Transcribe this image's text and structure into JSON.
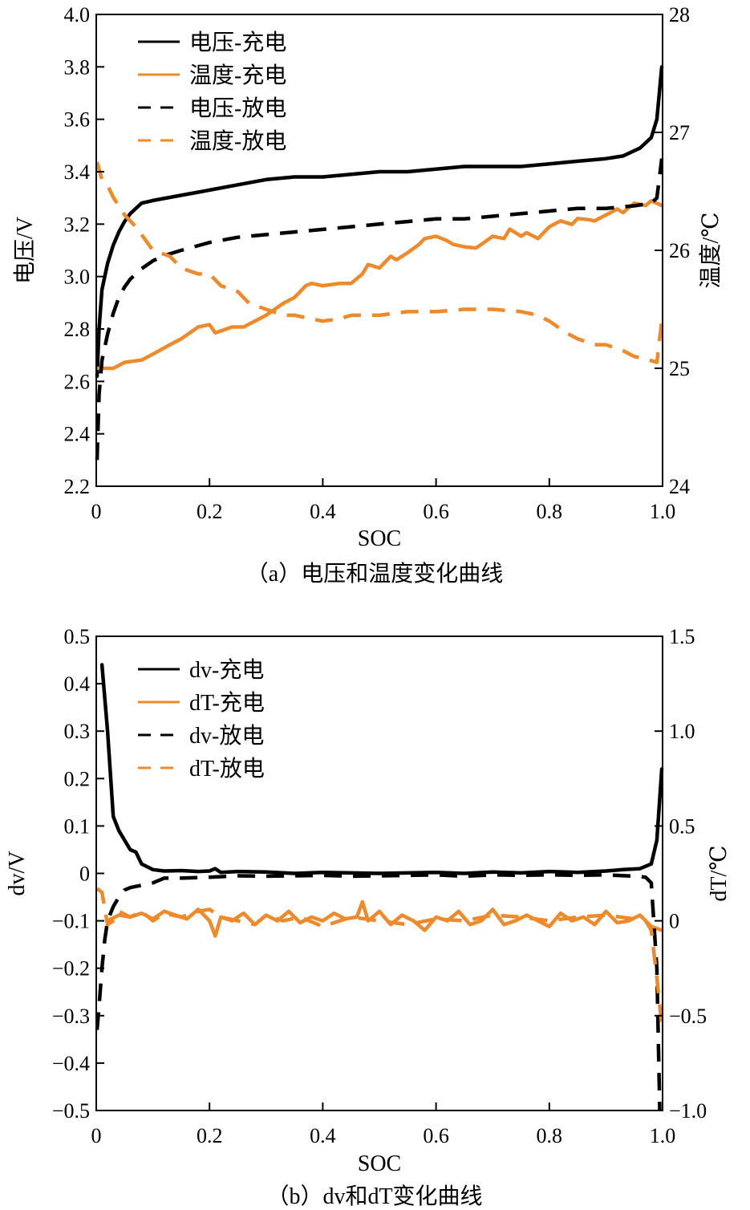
{
  "colors": {
    "voltage": "#000000",
    "temperature": "#ef8a2a"
  },
  "charts": [
    {
      "type": "line",
      "caption": "（a）电压和温度变化曲线",
      "xlabel": "SOC",
      "ylabel_left": "电压/V",
      "ylabel_right": "温度/℃",
      "xlim": [
        0,
        1.0
      ],
      "ylim_left": [
        2.2,
        4.0
      ],
      "ylim_right": [
        24,
        28
      ],
      "xticks": [
        "0",
        "0.2",
        "0.4",
        "0.6",
        "0.8",
        "1.0"
      ],
      "yticks_left": [
        "2.2",
        "2.4",
        "2.6",
        "2.8",
        "3.0",
        "3.2",
        "3.4",
        "3.6",
        "3.8",
        "4.0"
      ],
      "yticks_right": [
        "24",
        "25",
        "26",
        "27",
        "28"
      ],
      "legend_position": "top-left",
      "series": [
        {
          "name": "电压-充电",
          "axis": "left",
          "color": "#000000",
          "dash": "solid",
          "x": [
            0,
            0.005,
            0.01,
            0.02,
            0.03,
            0.04,
            0.05,
            0.06,
            0.07,
            0.08,
            0.1,
            0.15,
            0.2,
            0.25,
            0.3,
            0.35,
            0.4,
            0.45,
            0.5,
            0.55,
            0.6,
            0.65,
            0.7,
            0.75,
            0.8,
            0.85,
            0.9,
            0.93,
            0.96,
            0.98,
            0.99,
            1.0
          ],
          "y": [
            2.62,
            2.8,
            2.95,
            3.05,
            3.12,
            3.17,
            3.21,
            3.24,
            3.26,
            3.28,
            3.29,
            3.31,
            3.33,
            3.35,
            3.37,
            3.38,
            3.38,
            3.39,
            3.4,
            3.4,
            3.41,
            3.42,
            3.42,
            3.42,
            3.43,
            3.44,
            3.45,
            3.46,
            3.49,
            3.53,
            3.6,
            3.8
          ]
        },
        {
          "name": "温度-充电",
          "axis": "right",
          "color": "#ef8a2a",
          "dash": "solid",
          "x": [
            0,
            0.01,
            0.03,
            0.05,
            0.08,
            0.1,
            0.13,
            0.15,
            0.18,
            0.2,
            0.21,
            0.24,
            0.26,
            0.28,
            0.3,
            0.33,
            0.35,
            0.37,
            0.38,
            0.4,
            0.43,
            0.45,
            0.47,
            0.48,
            0.5,
            0.52,
            0.53,
            0.55,
            0.57,
            0.58,
            0.6,
            0.62,
            0.63,
            0.65,
            0.67,
            0.68,
            0.7,
            0.72,
            0.73,
            0.75,
            0.76,
            0.78,
            0.8,
            0.82,
            0.84,
            0.85,
            0.87,
            0.88,
            0.9,
            0.92,
            0.93,
            0.95,
            0.97,
            0.98,
            1.0
          ],
          "y": [
            25.0,
            25.0,
            25.0,
            25.05,
            25.07,
            25.12,
            25.2,
            25.25,
            25.35,
            25.37,
            25.3,
            25.35,
            25.35,
            25.4,
            25.45,
            25.55,
            25.6,
            25.7,
            25.72,
            25.7,
            25.72,
            25.72,
            25.8,
            25.88,
            25.85,
            25.95,
            25.92,
            25.98,
            26.05,
            26.1,
            26.12,
            26.08,
            26.05,
            26.03,
            26.02,
            26.05,
            26.12,
            26.1,
            26.18,
            26.12,
            26.15,
            26.1,
            26.2,
            26.25,
            26.22,
            26.27,
            26.26,
            26.25,
            26.3,
            26.35,
            26.32,
            26.4,
            26.38,
            26.42,
            26.38
          ]
        },
        {
          "name": "电压-放电",
          "axis": "left",
          "color": "#000000",
          "dash": "dash",
          "x": [
            0,
            0.005,
            0.01,
            0.02,
            0.03,
            0.04,
            0.05,
            0.06,
            0.07,
            0.08,
            0.1,
            0.12,
            0.15,
            0.2,
            0.25,
            0.3,
            0.35,
            0.4,
            0.45,
            0.5,
            0.55,
            0.6,
            0.65,
            0.7,
            0.75,
            0.8,
            0.85,
            0.9,
            0.95,
            0.98,
            0.99,
            1.0
          ],
          "y": [
            2.3,
            2.55,
            2.68,
            2.78,
            2.86,
            2.92,
            2.96,
            2.99,
            3.01,
            3.03,
            3.06,
            3.08,
            3.1,
            3.13,
            3.15,
            3.16,
            3.17,
            3.18,
            3.19,
            3.2,
            3.21,
            3.22,
            3.22,
            3.23,
            3.24,
            3.25,
            3.26,
            3.26,
            3.27,
            3.28,
            3.3,
            3.45
          ]
        },
        {
          "name": "温度-放电",
          "axis": "right",
          "color": "#ef8a2a",
          "dash": "dash",
          "x": [
            0,
            0.01,
            0.02,
            0.03,
            0.05,
            0.07,
            0.1,
            0.13,
            0.15,
            0.18,
            0.2,
            0.22,
            0.25,
            0.27,
            0.3,
            0.33,
            0.35,
            0.38,
            0.4,
            0.43,
            0.45,
            0.5,
            0.55,
            0.6,
            0.65,
            0.7,
            0.75,
            0.78,
            0.8,
            0.83,
            0.85,
            0.88,
            0.9,
            0.93,
            0.95,
            0.97,
            0.99,
            1.0
          ],
          "y": [
            26.75,
            26.6,
            26.55,
            26.45,
            26.3,
            26.2,
            26.0,
            25.95,
            25.85,
            25.8,
            25.8,
            25.7,
            25.65,
            25.55,
            25.5,
            25.45,
            25.45,
            25.42,
            25.4,
            25.42,
            25.45,
            25.45,
            25.48,
            25.48,
            25.5,
            25.5,
            25.48,
            25.45,
            25.4,
            25.3,
            25.25,
            25.2,
            25.2,
            25.15,
            25.1,
            25.08,
            25.05,
            25.4
          ]
        }
      ]
    },
    {
      "type": "line",
      "caption": "（b）dv和dT变化曲线",
      "xlabel": "SOC",
      "ylabel_left": "dv/V",
      "ylabel_right": "dT/℃",
      "xlim": [
        0,
        1.0
      ],
      "ylim_left": [
        -0.5,
        0.5
      ],
      "ylim_right": [
        -1.0,
        1.5
      ],
      "xticks": [
        "0",
        "0.2",
        "0.4",
        "0.6",
        "0.8",
        "1.0"
      ],
      "yticks_left": [
        "−0.5",
        "−0.4",
        "−0.3",
        "−0.2",
        "−0.1",
        "0",
        "0.1",
        "0.2",
        "0.3",
        "0.4",
        "0.5"
      ],
      "yticks_right": [
        "−1.0",
        "−0.5",
        "0",
        "0.5",
        "1.0",
        "1.5"
      ],
      "legend_position": "top-left",
      "series": [
        {
          "name": "dv-充电",
          "axis": "left",
          "color": "#000000",
          "dash": "solid",
          "x": [
            0.01,
            0.02,
            0.03,
            0.04,
            0.05,
            0.06,
            0.07,
            0.08,
            0.1,
            0.12,
            0.15,
            0.18,
            0.2,
            0.21,
            0.22,
            0.25,
            0.3,
            0.35,
            0.4,
            0.45,
            0.5,
            0.55,
            0.6,
            0.65,
            0.7,
            0.75,
            0.8,
            0.85,
            0.9,
            0.93,
            0.96,
            0.98,
            0.99,
            1.0
          ],
          "y": [
            0.44,
            0.3,
            0.12,
            0.09,
            0.07,
            0.05,
            0.045,
            0.02,
            0.008,
            0.005,
            0.006,
            0.004,
            0.005,
            0.01,
            0.002,
            0.004,
            0.003,
            0.0,
            0.002,
            0.001,
            0.0,
            0.001,
            0.002,
            0.0,
            0.003,
            0.001,
            0.004,
            0.002,
            0.005,
            0.008,
            0.01,
            0.02,
            0.07,
            0.22
          ]
        },
        {
          "name": "dT-充电",
          "axis": "right",
          "color": "#ef8a2a",
          "dash": "solid",
          "x": [
            0.02,
            0.04,
            0.06,
            0.08,
            0.1,
            0.12,
            0.14,
            0.16,
            0.18,
            0.2,
            0.21,
            0.22,
            0.24,
            0.26,
            0.28,
            0.3,
            0.32,
            0.34,
            0.36,
            0.38,
            0.4,
            0.42,
            0.44,
            0.46,
            0.47,
            0.48,
            0.5,
            0.52,
            0.54,
            0.56,
            0.58,
            0.6,
            0.62,
            0.64,
            0.66,
            0.68,
            0.7,
            0.72,
            0.74,
            0.76,
            0.78,
            0.8,
            0.82,
            0.84,
            0.86,
            0.88,
            0.9,
            0.92,
            0.94,
            0.96,
            0.98,
            1.0
          ],
          "y": [
            0.0,
            0.03,
            0.02,
            0.04,
            0.01,
            0.05,
            0.03,
            0.01,
            0.06,
            0.0,
            -0.08,
            0.02,
            0.0,
            0.04,
            -0.02,
            0.03,
            0.0,
            0.05,
            -0.01,
            0.02,
            0.0,
            0.04,
            0.01,
            0.02,
            0.1,
            0.0,
            0.05,
            -0.02,
            0.03,
            0.0,
            -0.05,
            0.02,
            0.0,
            0.05,
            -0.02,
            0.0,
            0.06,
            -0.02,
            0.0,
            0.03,
            0.0,
            -0.03,
            0.04,
            0.0,
            0.02,
            -0.02,
            0.05,
            -0.01,
            0.0,
            0.03,
            -0.03,
            -0.05
          ]
        },
        {
          "name": "dv-放电",
          "axis": "left",
          "color": "#000000",
          "dash": "dash",
          "x": [
            0.0,
            0.005,
            0.01,
            0.015,
            0.02,
            0.03,
            0.04,
            0.05,
            0.06,
            0.08,
            0.1,
            0.12,
            0.15,
            0.2,
            0.25,
            0.3,
            0.35,
            0.4,
            0.45,
            0.5,
            0.55,
            0.6,
            0.65,
            0.7,
            0.75,
            0.8,
            0.85,
            0.9,
            0.95,
            0.97,
            0.98,
            0.99,
            0.995
          ],
          "y": [
            -0.33,
            -0.28,
            -0.2,
            -0.14,
            -0.1,
            -0.07,
            -0.05,
            -0.035,
            -0.03,
            -0.025,
            -0.02,
            -0.01,
            -0.01,
            -0.008,
            -0.005,
            -0.006,
            -0.005,
            -0.004,
            -0.006,
            -0.005,
            -0.004,
            -0.003,
            -0.006,
            -0.003,
            -0.004,
            -0.003,
            -0.004,
            -0.003,
            -0.006,
            -0.008,
            -0.02,
            -0.2,
            -0.5
          ]
        },
        {
          "name": "dT-放电",
          "axis": "right",
          "color": "#ef8a2a",
          "dash": "dash",
          "x": [
            0.0,
            0.01,
            0.02,
            0.03,
            0.04,
            0.06,
            0.08,
            0.1,
            0.12,
            0.15,
            0.18,
            0.2,
            0.22,
            0.25,
            0.28,
            0.3,
            0.33,
            0.36,
            0.4,
            0.45,
            0.5,
            0.55,
            0.6,
            0.65,
            0.7,
            0.75,
            0.8,
            0.85,
            0.9,
            0.95,
            0.97,
            0.98,
            0.99,
            1.0
          ],
          "y": [
            0.17,
            0.15,
            -0.02,
            0.0,
            0.05,
            0.02,
            0.05,
            0.0,
            0.04,
            0.02,
            0.05,
            0.06,
            0.02,
            0.0,
            -0.02,
            0.03,
            0.0,
            0.02,
            -0.03,
            0.02,
            0.0,
            -0.02,
            0.01,
            0.0,
            0.03,
            0.02,
            0.0,
            0.02,
            0.03,
            0.01,
            0.0,
            -0.05,
            -0.3,
            -0.55
          ]
        }
      ]
    }
  ]
}
